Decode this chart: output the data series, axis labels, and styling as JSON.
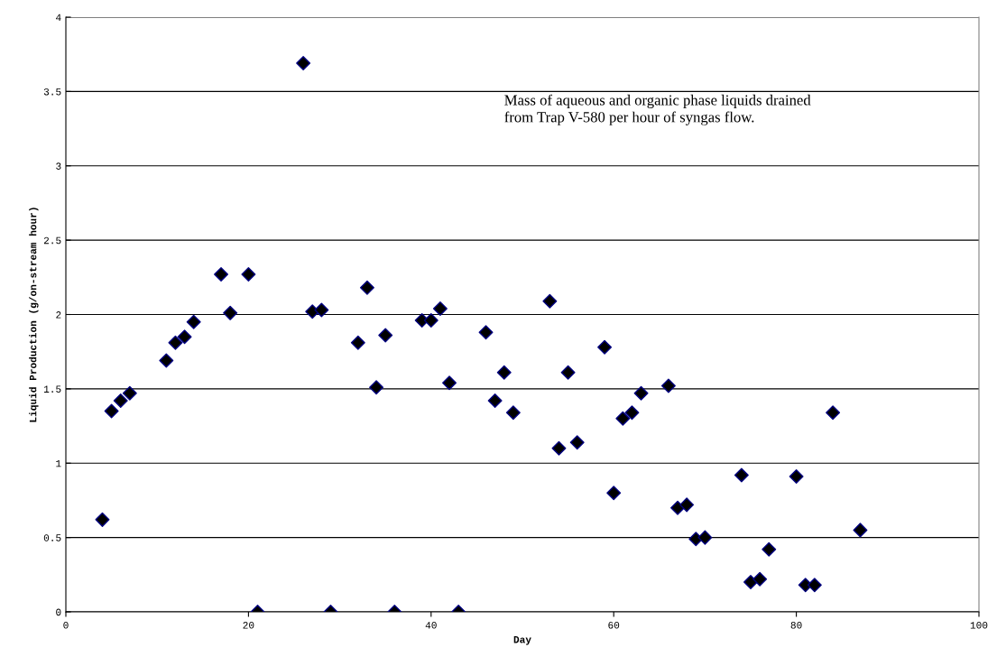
{
  "chart_data": {
    "type": "scatter",
    "xlabel": "Day",
    "ylabel": "Liquid Production (g/on-stream hour)",
    "annotations": [
      "Mass of aqueous and organic phase liquids drained\nfrom Trap V-580 per hour of syngas flow."
    ],
    "xlim": [
      0,
      100
    ],
    "xticks": [
      0,
      20,
      40,
      60,
      80,
      100
    ],
    "ylim": [
      0,
      4
    ],
    "yticks": [
      0,
      0.5,
      1,
      1.5,
      2,
      2.5,
      3,
      3.5,
      4
    ],
    "grid": "y",
    "marker": "diamond",
    "series": [
      {
        "color": "#000000",
        "x": [
          4,
          5,
          6,
          7,
          11,
          12,
          13,
          14,
          17,
          18,
          20,
          21,
          26,
          27,
          28,
          29,
          32,
          33,
          34,
          35,
          36,
          39,
          40,
          41,
          42,
          43,
          46,
          47,
          48,
          49,
          53,
          54,
          55,
          56,
          59,
          60,
          61,
          62,
          63,
          66,
          67,
          68,
          69,
          70,
          74,
          75,
          76,
          77,
          80,
          81,
          82,
          84,
          87
        ],
        "values": [
          0.62,
          1.35,
          1.42,
          1.47,
          1.69,
          1.81,
          1.85,
          1.95,
          2.27,
          2.01,
          2.27,
          0,
          3.69,
          2.02,
          2.03,
          0,
          1.81,
          2.18,
          1.51,
          1.86,
          0,
          1.96,
          1.96,
          2.04,
          1.54,
          0,
          1.88,
          1.42,
          1.61,
          1.34,
          2.09,
          1.1,
          1.61,
          1.14,
          1.78,
          0.8,
          1.3,
          1.34,
          1.47,
          1.52,
          0.7,
          0.72,
          0.49,
          0.5,
          0.92,
          0.2,
          0.22,
          0.42,
          0.91,
          0.18,
          0.18,
          1.34,
          0.55
        ]
      }
    ]
  }
}
